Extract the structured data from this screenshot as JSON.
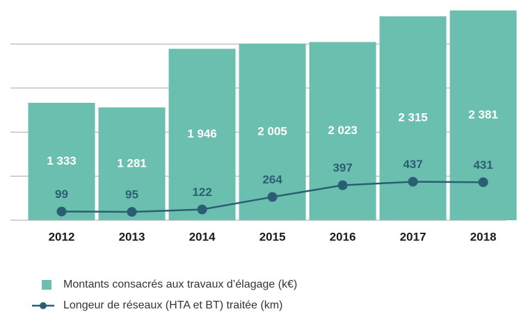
{
  "chart_data": {
    "type": "bar",
    "categories": [
      "2012",
      "2013",
      "2014",
      "2015",
      "2016",
      "2017",
      "2018"
    ],
    "series": [
      {
        "name": "Montants consacrés aux travaux d’élagage (k€)",
        "type": "bar",
        "color": "#6bbfae",
        "values": [
          1333,
          1281,
          1946,
          2005,
          2023,
          2315,
          2381
        ],
        "value_labels": [
          "1 333",
          "1 281",
          "1 946",
          "2 005",
          "2 023",
          "2 315",
          "2 381"
        ]
      },
      {
        "name": "Longeur de réseaux (HTA et BT) traitée (km)",
        "type": "line",
        "color": "#2a5f73",
        "axis": "y2",
        "values": [
          99,
          95,
          122,
          264,
          397,
          437,
          431
        ]
      }
    ],
    "ylim": [
      0,
      2500
    ],
    "yticks": [
      0,
      500,
      1000,
      1500,
      2000
    ],
    "y2lim": [
      0,
      2500
    ],
    "grid": true,
    "legend": "bottom"
  }
}
